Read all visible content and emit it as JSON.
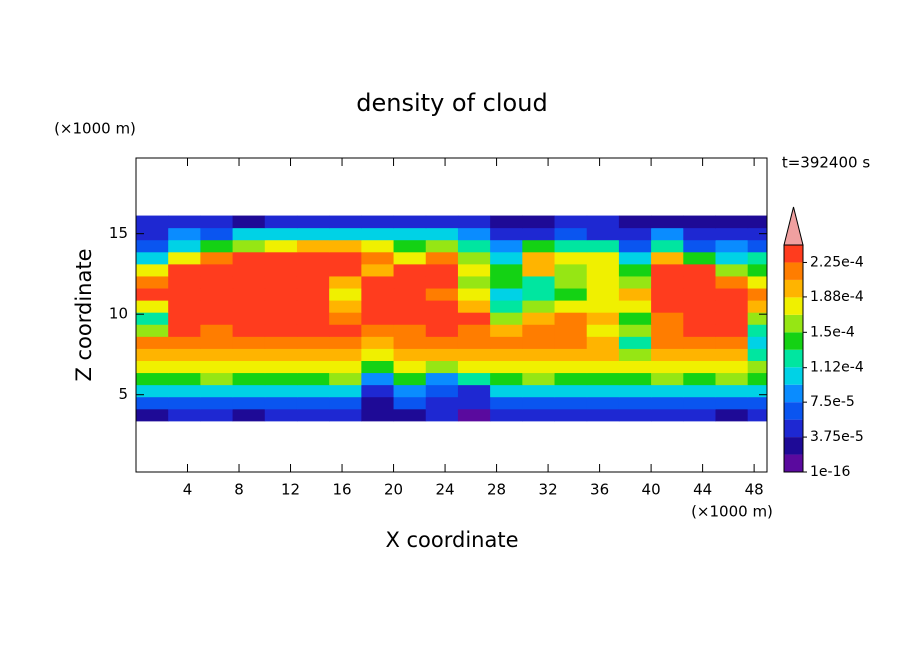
{
  "chart_data": {
    "type": "contour",
    "title": "density of cloud",
    "x_label": "X coordinate",
    "y_label": "Z coordinate",
    "x_unit": "(×1000 m)",
    "y_unit": "(×1000 m)",
    "time_label": "t=392400 s",
    "xlim": [
      0,
      49
    ],
    "ylim": [
      0.2,
      19.7
    ],
    "xticks": [
      4,
      8,
      12,
      16,
      20,
      24,
      28,
      32,
      36,
      40,
      44,
      48
    ],
    "yticks": [
      5,
      10,
      15
    ],
    "x": [
      1.25,
      3.75,
      6.25,
      8.75,
      11.25,
      13.75,
      16.25,
      18.75,
      21.25,
      23.75,
      26.25,
      28.75,
      31.25,
      33.75,
      36.25,
      38.75,
      41.25,
      43.75,
      46.25,
      48.75
    ],
    "z": [
      3.75,
      4.5,
      5.25,
      6,
      6.75,
      7.5,
      8.25,
      9,
      9.75,
      10.5,
      11.25,
      12,
      12.75,
      13.5,
      14.25,
      15,
      15.75
    ],
    "values": [
      [
        2.8e-05,
        4.7e-05,
        4.7e-05,
        2.8e-05,
        4.7e-05,
        4.7e-05,
        4.7e-05,
        2.8e-05,
        2.8e-05,
        4.7e-05,
        9e-06,
        4.7e-05,
        4.7e-05,
        4.7e-05,
        4.7e-05,
        4.7e-05,
        4.7e-05,
        4.7e-05,
        2.8e-05,
        4.7e-05
      ],
      [
        6.6e-05,
        6.6e-05,
        6.6e-05,
        6.6e-05,
        6.6e-05,
        6.6e-05,
        6.6e-05,
        2.8e-05,
        6.6e-05,
        4.7e-05,
        4.7e-05,
        6.6e-05,
        6.6e-05,
        6.6e-05,
        6.6e-05,
        6.6e-05,
        6.6e-05,
        6.6e-05,
        6.6e-05,
        6.6e-05
      ],
      [
        0.000103,
        0.000103,
        0.000103,
        0.000103,
        0.000103,
        0.000103,
        0.000103,
        4.7e-05,
        8.4e-05,
        6.6e-05,
        4.7e-05,
        0.000103,
        0.000103,
        0.000103,
        0.000103,
        0.000103,
        0.000103,
        0.000103,
        0.000103,
        0.000103
      ],
      [
        0.000141,
        0.000141,
        0.000159,
        0.000141,
        0.000141,
        0.000141,
        0.000159,
        8.4e-05,
        0.000141,
        8.4e-05,
        0.000122,
        0.000141,
        0.000159,
        0.000141,
        0.000141,
        0.000141,
        0.000159,
        0.000141,
        0.000159,
        0.000141
      ],
      [
        0.000178,
        0.000178,
        0.000178,
        0.000178,
        0.000178,
        0.000178,
        0.000178,
        0.000141,
        0.000178,
        0.000159,
        0.000178,
        0.000178,
        0.000178,
        0.000178,
        0.000178,
        0.000178,
        0.000178,
        0.000178,
        0.000178,
        0.000159
      ],
      [
        0.000197,
        0.000197,
        0.000197,
        0.000197,
        0.000197,
        0.000197,
        0.000197,
        0.000178,
        0.000197,
        0.000197,
        0.000197,
        0.000197,
        0.000197,
        0.000197,
        0.000197,
        0.000159,
        0.000197,
        0.000197,
        0.000197,
        0.000122
      ],
      [
        0.000216,
        0.000216,
        0.000216,
        0.000216,
        0.000216,
        0.000216,
        0.000216,
        0.000197,
        0.000216,
        0.000216,
        0.000216,
        0.000216,
        0.000216,
        0.000216,
        0.000197,
        0.000122,
        0.000216,
        0.000216,
        0.000216,
        0.000103
      ],
      [
        0.000159,
        0.000234,
        0.000216,
        0.000234,
        0.000234,
        0.000234,
        0.000234,
        0.000216,
        0.000216,
        0.000234,
        0.000216,
        0.000197,
        0.000216,
        0.000216,
        0.000178,
        0.000159,
        0.000216,
        0.000234,
        0.000234,
        0.000122
      ],
      [
        0.000122,
        0.000234,
        0.000234,
        0.000234,
        0.000234,
        0.000234,
        0.000216,
        0.000234,
        0.000234,
        0.000234,
        0.000234,
        0.000159,
        0.000197,
        0.000216,
        0.000197,
        0.000141,
        0.000216,
        0.000234,
        0.000234,
        0.000159
      ],
      [
        0.000178,
        0.000234,
        0.000234,
        0.000234,
        0.000234,
        0.000234,
        0.000197,
        0.000234,
        0.000234,
        0.000234,
        0.000197,
        0.000122,
        0.000159,
        0.000178,
        0.000178,
        0.000178,
        0.000234,
        0.000234,
        0.000234,
        0.000197
      ],
      [
        0.000234,
        0.000234,
        0.000234,
        0.000234,
        0.000234,
        0.000234,
        0.000178,
        0.000234,
        0.000234,
        0.000216,
        0.000178,
        0.000103,
        0.000122,
        0.000141,
        0.000178,
        0.000197,
        0.000234,
        0.000234,
        0.000234,
        0.000216
      ],
      [
        0.000216,
        0.000234,
        0.000234,
        0.000234,
        0.000234,
        0.000234,
        0.000197,
        0.000234,
        0.000234,
        0.000234,
        0.000159,
        0.000141,
        0.000122,
        0.000159,
        0.000178,
        0.000159,
        0.000234,
        0.000234,
        0.000216,
        0.000178
      ],
      [
        0.000178,
        0.000234,
        0.000234,
        0.000234,
        0.000234,
        0.000234,
        0.000234,
        0.000197,
        0.000234,
        0.000234,
        0.000178,
        0.000141,
        0.000197,
        0.000159,
        0.000178,
        0.000141,
        0.000234,
        0.000234,
        0.000159,
        0.000141
      ],
      [
        0.000103,
        0.000178,
        0.000216,
        0.000234,
        0.000234,
        0.000234,
        0.000234,
        0.000216,
        0.000178,
        0.000216,
        0.000159,
        0.000103,
        0.000197,
        0.000178,
        0.000178,
        0.000103,
        0.000197,
        0.000141,
        0.000103,
        0.000122
      ],
      [
        6.6e-05,
        0.000103,
        0.000141,
        0.000159,
        0.000178,
        0.000197,
        0.000197,
        0.000178,
        0.000141,
        0.000159,
        0.000122,
        8.4e-05,
        0.000141,
        0.000122,
        0.000122,
        6.6e-05,
        0.000122,
        6.6e-05,
        8.4e-05,
        6.6e-05
      ],
      [
        4.7e-05,
        8.4e-05,
        6.6e-05,
        0.000103,
        0.000103,
        0.000103,
        0.000103,
        0.000103,
        0.000103,
        0.000103,
        8.4e-05,
        4.7e-05,
        4.7e-05,
        6.6e-05,
        4.7e-05,
        4.7e-05,
        8.4e-05,
        4.7e-05,
        4.7e-05,
        4.7e-05
      ],
      [
        4.7e-05,
        4.7e-05,
        4.7e-05,
        2.8e-05,
        4.7e-05,
        4.7e-05,
        4.7e-05,
        4.7e-05,
        4.7e-05,
        4.7e-05,
        4.7e-05,
        2.8e-05,
        2.8e-05,
        4.7e-05,
        4.7e-05,
        2.8e-05,
        2.8e-05,
        2.8e-05,
        2.8e-05,
        2.8e-05
      ]
    ],
    "colorbar": {
      "levels": [
        0,
        1.875e-05,
        3.75e-05,
        5.625e-05,
        7.5e-05,
        9.375e-05,
        0.0001125,
        0.00013125,
        0.00015,
        0.00016875,
        0.0001875,
        0.00020625,
        0.000225,
        0.00024375
      ],
      "colors": [
        "#5a0a9e",
        "#1e0a96",
        "#1e28d2",
        "#0a55f0",
        "#0a8cff",
        "#00d2e6",
        "#00e6a0",
        "#14d214",
        "#96e614",
        "#f0f000",
        "#ffb400",
        "#ff7d00",
        "#ff3c1e"
      ],
      "extend_color": "#f0a0a0",
      "ticks": [
        {
          "value": 1e-16,
          "label": "1e-16"
        },
        {
          "value": 3.75e-05,
          "label": "3.75e-5"
        },
        {
          "value": 7.5e-05,
          "label": "7.5e-5"
        },
        {
          "value": 0.000112,
          "label": "1.12e-4"
        },
        {
          "value": 0.00015,
          "label": "1.5e-4"
        },
        {
          "value": 0.000188,
          "label": "1.88e-4"
        },
        {
          "value": 0.000225,
          "label": "2.25e-4"
        }
      ]
    }
  }
}
